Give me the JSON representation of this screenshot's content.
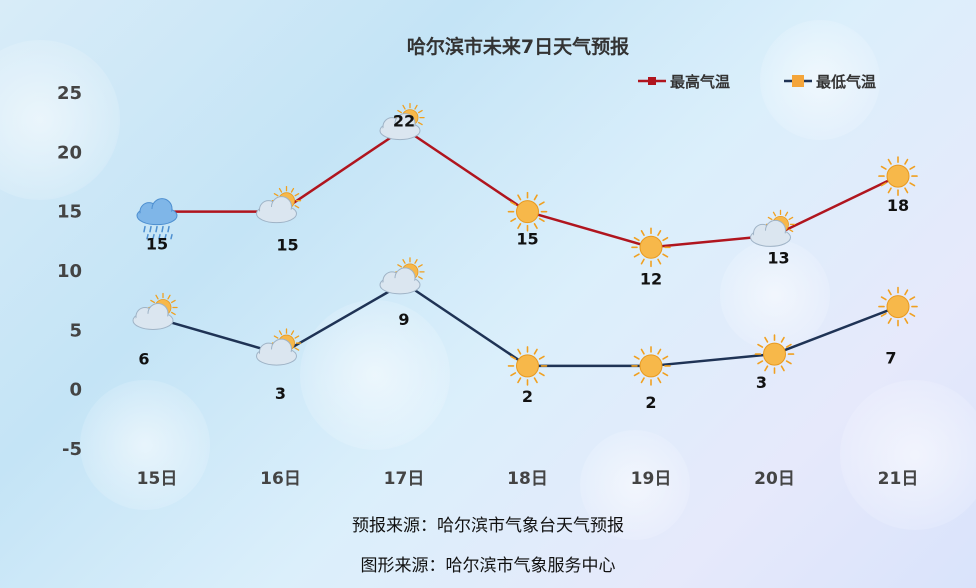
{
  "chart_data": {
    "type": "line",
    "title": "哈尔滨市未来7日天气预报",
    "categories": [
      "15日",
      "16日",
      "17日",
      "18日",
      "19日",
      "20日",
      "21日"
    ],
    "ylim": [
      -5,
      25
    ],
    "yticks": [
      -5,
      0,
      5,
      10,
      15,
      20,
      25
    ],
    "grid": false,
    "legend_position": "top-right",
    "series": [
      {
        "name": "最高气温",
        "values": [
          15,
          15,
          22,
          15,
          12,
          13,
          18
        ],
        "color": "#b0151e",
        "icons": [
          "rain-cloud-icon",
          "partly-cloudy-icon",
          "partly-cloudy-icon",
          "sun-icon",
          "sun-icon",
          "partly-cloudy-icon",
          "sun-icon"
        ]
      },
      {
        "name": "最低气温",
        "values": [
          6,
          3,
          9,
          2,
          2,
          3,
          7
        ],
        "color": "#1f3355",
        "icons": [
          "partly-cloudy-icon",
          "partly-cloudy-icon",
          "partly-cloudy-icon",
          "sun-icon",
          "sun-icon",
          "sun-icon",
          "sun-icon"
        ]
      }
    ]
  },
  "footer": {
    "forecast_source": "预报来源：哈尔滨市气象台天气预报",
    "graphic_source": "图形来源：哈尔滨市气象服务中心"
  }
}
